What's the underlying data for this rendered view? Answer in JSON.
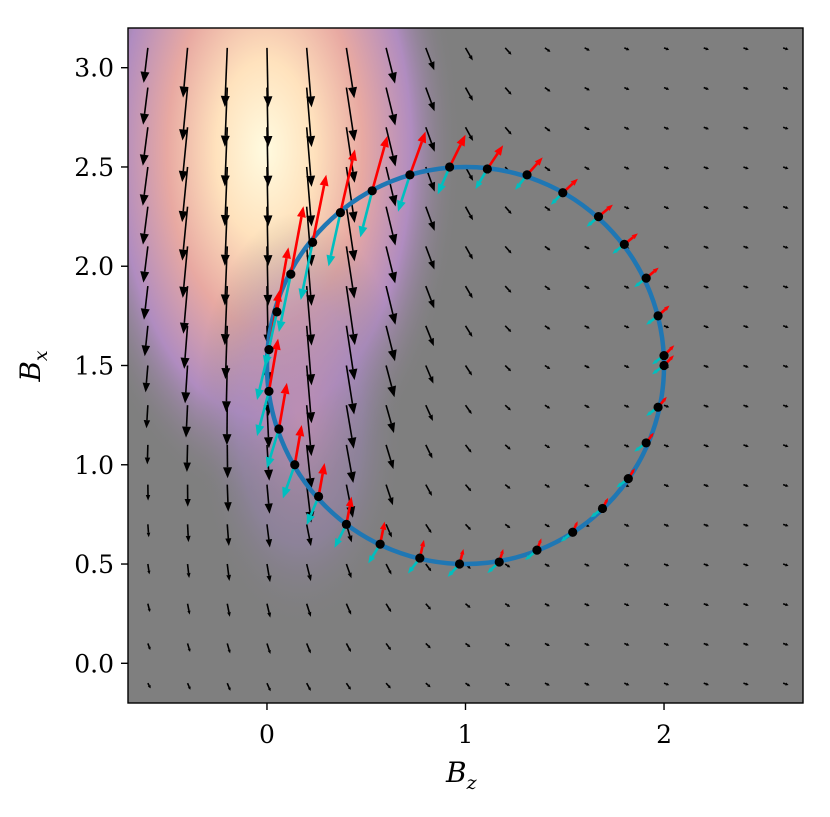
{
  "chart_data": {
    "type": "vector-field",
    "xlabel": {
      "main": "B",
      "sub": "z"
    },
    "ylabel": {
      "main": "B",
      "sub": "x"
    },
    "xlim": [
      -0.7,
      2.7
    ],
    "ylim": [
      -0.2,
      3.2
    ],
    "x_ticks": [
      "0",
      "1",
      "2"
    ],
    "x_tick_values": [
      0,
      1,
      2
    ],
    "y_ticks": [
      "0.0",
      "0.5",
      "1.0",
      "1.5",
      "2.0",
      "2.5",
      "3.0"
    ],
    "y_tick_values": [
      0.0,
      0.5,
      1.0,
      1.5,
      2.0,
      2.5,
      3.0
    ],
    "background_field": {
      "description": "filled contour of field magnitude",
      "peak": [
        0.0,
        2.6
      ],
      "colormap": [
        "#7f7f7f",
        "#9b84b8",
        "#b98fb5",
        "#e3a3a0",
        "#ffe6c4",
        "#fffbe0"
      ]
    },
    "circle": {
      "center": [
        1.0,
        1.5
      ],
      "radius": 1.0,
      "color": "#1f77b4"
    },
    "circle_points": [
      [
        0.97,
        0.5
      ],
      [
        1.17,
        0.51
      ],
      [
        1.36,
        0.57
      ],
      [
        1.54,
        0.66
      ],
      [
        1.69,
        0.78
      ],
      [
        1.82,
        0.93
      ],
      [
        1.91,
        1.11
      ],
      [
        1.97,
        1.29
      ],
      [
        2.0,
        1.5
      ],
      [
        2.0,
        1.55
      ],
      [
        1.97,
        1.75
      ],
      [
        1.91,
        1.94
      ],
      [
        1.8,
        2.11
      ],
      [
        1.67,
        2.25
      ],
      [
        1.49,
        2.37
      ],
      [
        1.31,
        2.46
      ],
      [
        1.11,
        2.49
      ],
      [
        0.92,
        2.5
      ],
      [
        0.72,
        2.46
      ],
      [
        0.53,
        2.38
      ],
      [
        0.37,
        2.27
      ],
      [
        0.23,
        2.12
      ],
      [
        0.12,
        1.96
      ],
      [
        0.05,
        1.77
      ],
      [
        0.01,
        1.58
      ],
      [
        0.01,
        1.37
      ],
      [
        0.06,
        1.18
      ],
      [
        0.14,
        1.0
      ],
      [
        0.26,
        0.84
      ],
      [
        0.4,
        0.7
      ],
      [
        0.57,
        0.6
      ],
      [
        0.77,
        0.53
      ]
    ],
    "colors": {
      "quiver": "#000000",
      "red_vectors": "#ff0000",
      "cyan_vectors": "#00bfbf",
      "points": "#000000",
      "axes_bg": "#7f7f7f"
    }
  }
}
